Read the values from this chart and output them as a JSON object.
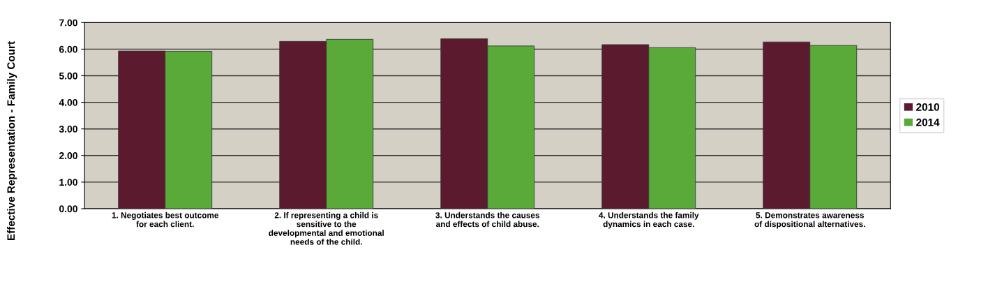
{
  "chart_data": {
    "type": "bar",
    "ylabel": "Effective Representation - Family Court",
    "categories": [
      "1. Negotiates best outcome\nfor each client.",
      "2. If representing a child is\nsensitive to the\ndevelopmental and emotional\nneeds of the child.",
      "3. Understands the causes\nand effects of child abuse.",
      "4. Understands the family\ndynamics in each case.",
      "5. Demonstrates awareness\nof dispositional alternatives."
    ],
    "series": [
      {
        "name": "2010",
        "color": "#5c1a2e",
        "values": [
          5.93,
          6.29,
          6.39,
          6.17,
          6.27
        ]
      },
      {
        "name": "2014",
        "color": "#5aaa3a",
        "values": [
          5.92,
          6.37,
          6.12,
          6.06,
          6.14
        ]
      }
    ],
    "ylim": [
      0,
      7
    ],
    "yticks": [
      {
        "value": 0,
        "label": "0.00"
      },
      {
        "value": 1,
        "label": "1.00"
      },
      {
        "value": 2,
        "label": "2.00"
      },
      {
        "value": 3,
        "label": "3.00"
      },
      {
        "value": 4,
        "label": "4.00"
      },
      {
        "value": 5,
        "label": "5.00"
      },
      {
        "value": 6,
        "label": "6.00"
      },
      {
        "value": 7,
        "label": "7.00"
      }
    ],
    "grid": "y",
    "legend": "right"
  }
}
